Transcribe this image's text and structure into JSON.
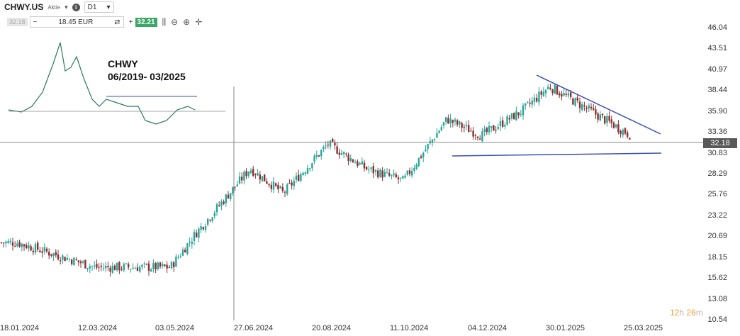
{
  "header": {
    "symbol": "CHWY.US",
    "subtype": "Aktie",
    "timeframe": "D1",
    "sell_price": "32.18",
    "quantity": "18.45 EUR",
    "minus": "−",
    "plus": "+",
    "buy_price": "32.21"
  },
  "inset": {
    "title_line1": "CHWY",
    "title_line2": "06/2019- 03/2025"
  },
  "chart_data": {
    "type": "candlestick",
    "timeframe": "D1",
    "current_price": 32.18,
    "ylim": [
      10.54,
      46.04
    ],
    "y_ticks": [
      "46.04",
      "43.51",
      "40.97",
      "38.44",
      "35.90",
      "33.36",
      "30.83",
      "28.29",
      "25.76",
      "23.22",
      "20.69",
      "18.15",
      "15.62",
      "13.08",
      "10.54"
    ],
    "x_ticks": [
      "18.01.2024",
      "12.03.2024",
      "03.05.2024",
      "27.06.2024",
      "20.08.2024",
      "11.10.2024",
      "04.12.2024",
      "30.01.2025",
      "25.03.2025"
    ],
    "approx_closes": [
      {
        "date": "2024-01-18",
        "close": 20.0
      },
      {
        "date": "2024-03-12",
        "close": 17.0
      },
      {
        "date": "2024-05-03",
        "close": 17.0
      },
      {
        "date": "2024-05-20",
        "close": 21.0
      },
      {
        "date": "2024-06-27",
        "close": 29.0
      },
      {
        "date": "2024-07-20",
        "close": 26.0
      },
      {
        "date": "2024-08-20",
        "close": 32.0
      },
      {
        "date": "2024-09-15",
        "close": 29.0
      },
      {
        "date": "2024-10-11",
        "close": 27.5
      },
      {
        "date": "2024-11-10",
        "close": 35.0
      },
      {
        "date": "2024-12-04",
        "close": 33.0
      },
      {
        "date": "2025-01-01",
        "close": 36.0
      },
      {
        "date": "2025-01-20",
        "close": 39.0
      },
      {
        "date": "2025-03-25",
        "close": 32.2
      }
    ],
    "annotations": [
      "descending resistance trendline",
      "horizontal support trendline near 30.8"
    ],
    "colors": {
      "up": "#26a69a",
      "down": "#8b2e2e",
      "trend": "#3a4fb5",
      "price_line": "#888888"
    }
  },
  "countdown": {
    "hours": "12",
    "h": "h",
    "minutes": "26",
    "m": "m"
  }
}
